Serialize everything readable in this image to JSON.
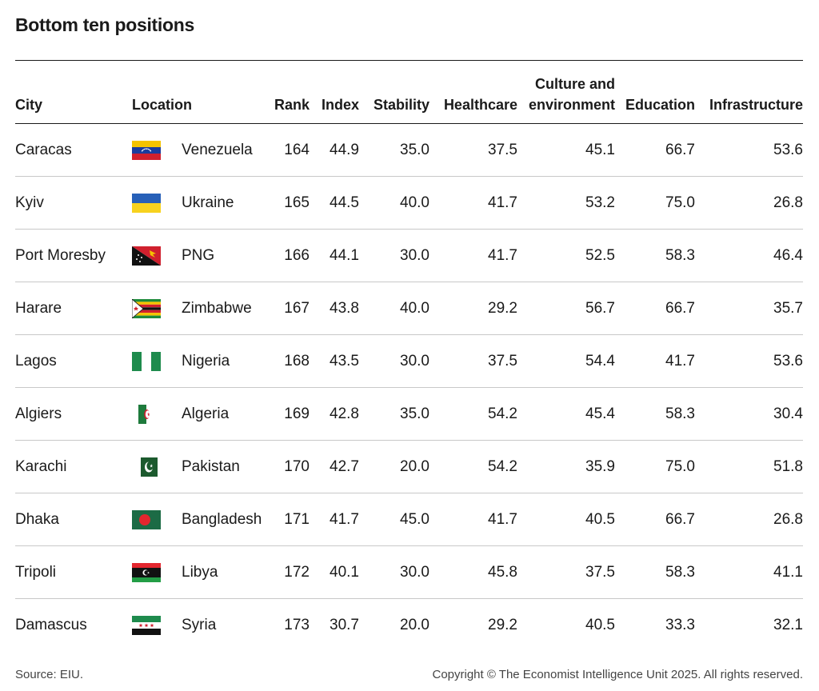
{
  "title": "Bottom ten positions",
  "footer": {
    "source": "Source: EIU.",
    "copyright": "Copyright © The Economist Intelligence Unit 2025. All rights reserved."
  },
  "chart_data": {
    "type": "table",
    "title": "Bottom ten positions",
    "columns": [
      "City",
      "Location",
      "Rank",
      "Index",
      "Stability",
      "Healthcare",
      "Culture and environment",
      "Education",
      "Infrastructure"
    ],
    "rows": [
      {
        "city": "Caracas",
        "location": "Venezuela",
        "flag": "venezuela-flag",
        "rank": "164",
        "index": "44.9",
        "stability": "35.0",
        "healthcare": "37.5",
        "culture": "45.1",
        "education": "66.7",
        "infrastructure": "53.6"
      },
      {
        "city": "Kyiv",
        "location": "Ukraine",
        "flag": "ukraine-flag",
        "rank": "165",
        "index": "44.5",
        "stability": "40.0",
        "healthcare": "41.7",
        "culture": "53.2",
        "education": "75.0",
        "infrastructure": "26.8"
      },
      {
        "city": "Port Moresby",
        "location": "PNG",
        "flag": "png-flag",
        "rank": "166",
        "index": "44.1",
        "stability": "30.0",
        "healthcare": "41.7",
        "culture": "52.5",
        "education": "58.3",
        "infrastructure": "46.4"
      },
      {
        "city": "Harare",
        "location": "Zimbabwe",
        "flag": "zimbabwe-flag",
        "rank": "167",
        "index": "43.8",
        "stability": "40.0",
        "healthcare": "29.2",
        "culture": "56.7",
        "education": "66.7",
        "infrastructure": "35.7"
      },
      {
        "city": "Lagos",
        "location": "Nigeria",
        "flag": "nigeria-flag",
        "rank": "168",
        "index": "43.5",
        "stability": "30.0",
        "healthcare": "37.5",
        "culture": "54.4",
        "education": "41.7",
        "infrastructure": "53.6"
      },
      {
        "city": "Algiers",
        "location": "Algeria",
        "flag": "algeria-flag",
        "rank": "169",
        "index": "42.8",
        "stability": "35.0",
        "healthcare": "54.2",
        "culture": "45.4",
        "education": "58.3",
        "infrastructure": "30.4"
      },
      {
        "city": "Karachi",
        "location": "Pakistan",
        "flag": "pakistan-flag",
        "rank": "170",
        "index": "42.7",
        "stability": "20.0",
        "healthcare": "54.2",
        "culture": "35.9",
        "education": "75.0",
        "infrastructure": "51.8"
      },
      {
        "city": "Dhaka",
        "location": "Bangladesh",
        "flag": "bangladesh-flag",
        "rank": "171",
        "index": "41.7",
        "stability": "45.0",
        "healthcare": "41.7",
        "culture": "40.5",
        "education": "66.7",
        "infrastructure": "26.8"
      },
      {
        "city": "Tripoli",
        "location": "Libya",
        "flag": "libya-flag",
        "rank": "172",
        "index": "40.1",
        "stability": "30.0",
        "healthcare": "45.8",
        "culture": "37.5",
        "education": "58.3",
        "infrastructure": "41.1"
      },
      {
        "city": "Damascus",
        "location": "Syria",
        "flag": "syria-flag",
        "rank": "173",
        "index": "30.7",
        "stability": "20.0",
        "healthcare": "29.2",
        "culture": "40.5",
        "education": "33.3",
        "infrastructure": "32.1"
      }
    ]
  }
}
